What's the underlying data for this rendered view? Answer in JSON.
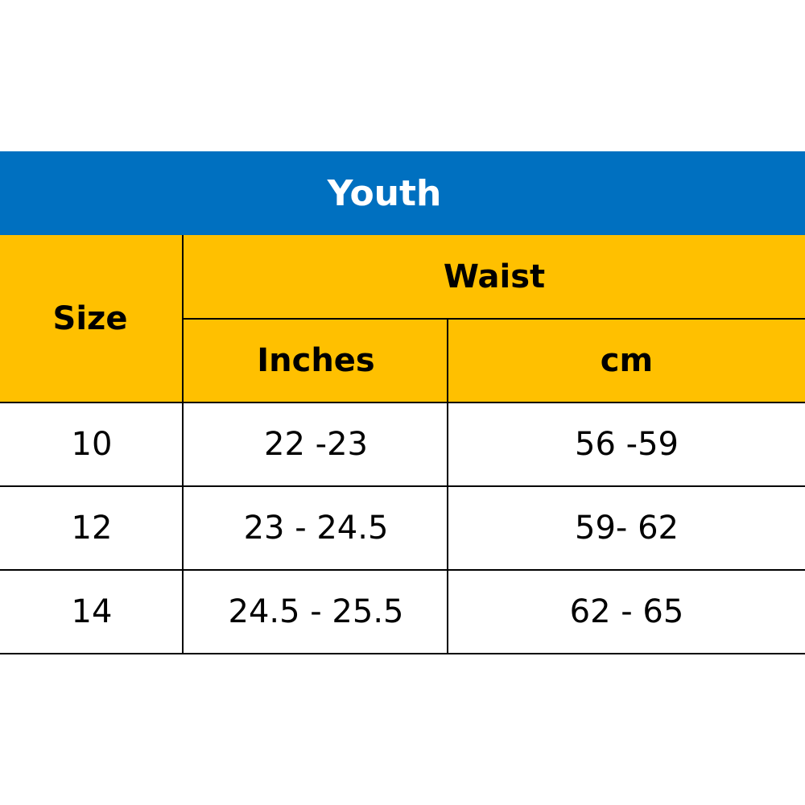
{
  "table": {
    "title": "Youth",
    "header": {
      "size": "Size",
      "waist": "Waist",
      "inches": "Inches",
      "cm": "cm"
    },
    "rows": [
      {
        "size": "10",
        "inches": "22 -23",
        "cm": "56 -59"
      },
      {
        "size": "12",
        "inches": "23 - 24.5",
        "cm": "59- 62"
      },
      {
        "size": "14",
        "inches": "24.5 - 25.5",
        "cm": "62 - 65"
      }
    ]
  },
  "colors": {
    "title_background": "#0070C0",
    "title_text": "#FFFFFF",
    "header_background": "#FFC000",
    "grid_lines": "#000000",
    "text": "#000000"
  }
}
